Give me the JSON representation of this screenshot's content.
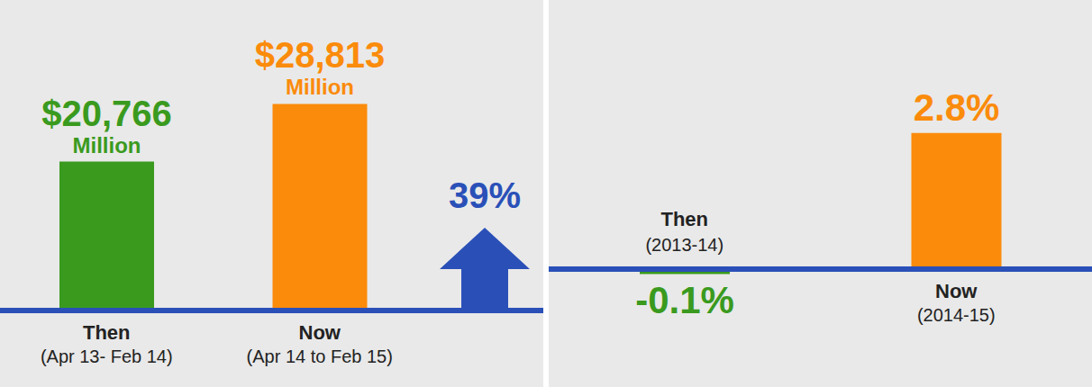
{
  "chart_data": [
    {
      "type": "bar",
      "categories": [
        "Then (Apr 13- Feb 14)",
        "Now (Apr 14 to Feb 15)"
      ],
      "values": [
        20766,
        28813
      ],
      "value_labels": [
        "$20,766 Million",
        "$28,813 Million"
      ],
      "colors": [
        "#3a9a1e",
        "#fb8b0b"
      ],
      "ylim": [
        0,
        32000
      ],
      "data_labels": true,
      "tick_labels": "x",
      "annotations": [
        "39%"
      ]
    },
    {
      "type": "bar",
      "categories": [
        "Then (2013-14)",
        "Now (2014-15)"
      ],
      "values": [
        -0.1,
        2.8
      ],
      "value_labels": [
        "-0.1%",
        "2.8%"
      ],
      "colors": [
        "#3a9a1e",
        "#fb8b0b"
      ],
      "ylim": [
        -1.5,
        3.5
      ],
      "data_labels": true,
      "tick_labels": "x"
    }
  ]
}
